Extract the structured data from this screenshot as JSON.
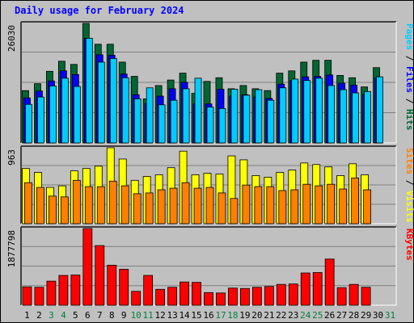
{
  "title": "Daily usage for February 2024",
  "colors": {
    "hits": "#006633",
    "files": "#0000ff",
    "pages": "#00ccff",
    "visits": "#ffff00",
    "sites": "#ff8000",
    "kbytes": "#ff0000",
    "weekend_day": "#008040",
    "weekday": "#000000",
    "grid": "#808080"
  },
  "side_labels": {
    "top": [
      {
        "text": "Pages",
        "color": "#00ccff"
      },
      {
        "text": " / ",
        "color": "#000000"
      },
      {
        "text": "Files",
        "color": "#0000ff"
      },
      {
        "text": " / ",
        "color": "#000000"
      },
      {
        "text": "Hits",
        "color": "#006633"
      }
    ],
    "middle": [
      {
        "text": "Sites",
        "color": "#ff8000"
      },
      {
        "text": " / ",
        "color": "#000000"
      },
      {
        "text": "Visits",
        "color": "#ffff00"
      }
    ],
    "bottom": [
      {
        "text": "KBytes",
        "color": "#ff0000"
      }
    ]
  },
  "chart_data": [
    {
      "type": "bar",
      "panel": "hits-files-pages",
      "title": "Daily usage for February 2024",
      "max_label": "26030",
      "ylim": [
        0,
        26030
      ],
      "categories": [
        "1",
        "2",
        "3",
        "4",
        "5",
        "6",
        "7",
        "8",
        "9",
        "10",
        "11",
        "12",
        "13",
        "14",
        "15",
        "16",
        "17",
        "18",
        "19",
        "20",
        "21",
        "22",
        "23",
        "24",
        "25",
        "26",
        "27",
        "28",
        "29",
        "30",
        "31"
      ],
      "weekend_days": [
        "3",
        "4",
        "10",
        "11",
        "17",
        "18",
        "24",
        "25",
        "31"
      ],
      "series": [
        {
          "name": "Hits",
          "values": [
            11400,
            12900,
            15600,
            17800,
            17100,
            26030,
            21500,
            21500,
            17600,
            14500,
            9600,
            12500,
            13700,
            15200,
            10800,
            13400,
            14200,
            11800,
            12500,
            11800,
            11400,
            15200,
            15700,
            17600,
            18000,
            18000,
            14700,
            14200,
            12200,
            16400,
            0
          ]
        },
        {
          "name": "Files",
          "values": [
            9800,
            11300,
            13500,
            15700,
            14900,
            22800,
            19200,
            19100,
            15000,
            10500,
            8600,
            10200,
            11800,
            13200,
            8500,
            8500,
            11700,
            10200,
            10500,
            10000,
            9700,
            12800,
            13600,
            14400,
            14500,
            14800,
            13000,
            12600,
            10600,
            14200,
            0
          ]
        },
        {
          "name": "Pages",
          "values": [
            8400,
            10000,
            12400,
            14100,
            12300,
            22800,
            17600,
            18400,
            14200,
            9600,
            12000,
            8300,
            9300,
            11800,
            14100,
            7800,
            7500,
            11700,
            10400,
            11600,
            9300,
            12000,
            13900,
            13600,
            14100,
            12500,
            11600,
            10900,
            11200,
            14400,
            0
          ]
        }
      ]
    },
    {
      "type": "bar",
      "panel": "visits-sites",
      "max_label": "963",
      "ylim": [
        0,
        963
      ],
      "categories": [
        "1",
        "2",
        "3",
        "4",
        "5",
        "6",
        "7",
        "8",
        "9",
        "10",
        "11",
        "12",
        "13",
        "14",
        "15",
        "16",
        "17",
        "18",
        "19",
        "20",
        "21",
        "22",
        "23",
        "24",
        "25",
        "26",
        "27",
        "28",
        "29",
        "30",
        "31"
      ],
      "series": [
        {
          "name": "Visits",
          "values": [
            700,
            650,
            460,
            480,
            670,
            700,
            730,
            963,
            820,
            550,
            600,
            620,
            710,
            920,
            620,
            640,
            630,
            860,
            810,
            610,
            590,
            650,
            680,
            770,
            750,
            720,
            610,
            760,
            620,
            0,
            0
          ]
        },
        {
          "name": "Sites",
          "values": [
            520,
            460,
            350,
            340,
            550,
            470,
            470,
            540,
            480,
            380,
            390,
            430,
            450,
            520,
            450,
            460,
            390,
            320,
            490,
            470,
            470,
            420,
            430,
            500,
            480,
            500,
            440,
            580,
            430,
            0,
            0
          ]
        }
      ]
    },
    {
      "type": "bar",
      "panel": "kbytes",
      "max_label": "1877798",
      "ylim": [
        0,
        1877798
      ],
      "categories": [
        "1",
        "2",
        "3",
        "4",
        "5",
        "6",
        "7",
        "8",
        "9",
        "10",
        "11",
        "12",
        "13",
        "14",
        "15",
        "16",
        "17",
        "18",
        "19",
        "20",
        "21",
        "22",
        "23",
        "24",
        "25",
        "26",
        "27",
        "28",
        "29",
        "30",
        "31"
      ],
      "series": [
        {
          "name": "KBytes",
          "values": [
            450000,
            440000,
            590000,
            730000,
            740000,
            1877798,
            1460000,
            980000,
            880000,
            340000,
            730000,
            390000,
            440000,
            570000,
            560000,
            310000,
            300000,
            420000,
            410000,
            440000,
            460000,
            510000,
            520000,
            790000,
            800000,
            1130000,
            430000,
            510000,
            440000,
            0,
            0
          ]
        }
      ]
    }
  ]
}
